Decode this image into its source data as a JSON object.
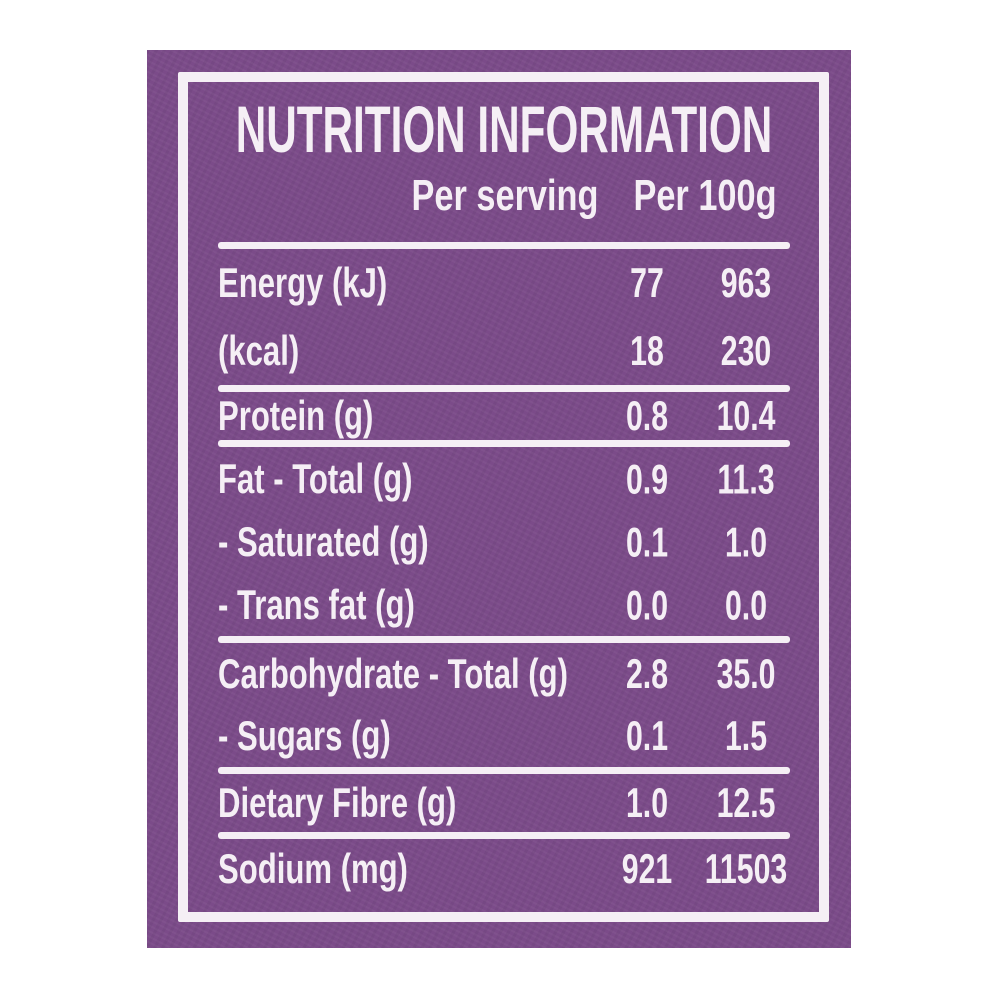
{
  "label": {
    "title": "NUTRITION INFORMATION",
    "columns": {
      "per_serving": "Per serving",
      "per_100g": "Per 100g"
    },
    "groups": [
      {
        "rows": [
          {
            "name": "Energy (kJ)",
            "per_serving": "77",
            "per_100g": "963"
          },
          {
            "name": "(kcal)",
            "per_serving": "18",
            "per_100g": "230"
          }
        ]
      },
      {
        "rows": [
          {
            "name": "Protein (g)",
            "per_serving": "0.8",
            "per_100g": "10.4"
          }
        ]
      },
      {
        "rows": [
          {
            "name": "Fat - Total (g)",
            "per_serving": "0.9",
            "per_100g": "11.3"
          },
          {
            "name": "- Saturated (g)",
            "per_serving": "0.1",
            "per_100g": "1.0"
          },
          {
            "name": "- Trans fat (g)",
            "per_serving": "0.0",
            "per_100g": "0.0"
          }
        ]
      },
      {
        "rows": [
          {
            "name": "Carbohydrate - Total (g)",
            "per_serving": "2.8",
            "per_100g": "35.0"
          },
          {
            "name": "- Sugars (g)",
            "per_serving": "0.1",
            "per_100g": "1.5"
          }
        ]
      },
      {
        "rows": [
          {
            "name": "Dietary Fibre (g)",
            "per_serving": "1.0",
            "per_100g": "12.5"
          }
        ]
      },
      {
        "rows": [
          {
            "name": "Sodium (mg)",
            "per_serving": "921",
            "per_100g": "11503"
          }
        ]
      }
    ],
    "colors": {
      "background": "#7b4b89",
      "foreground": "#f5eff5",
      "page": "#ffffff"
    }
  }
}
